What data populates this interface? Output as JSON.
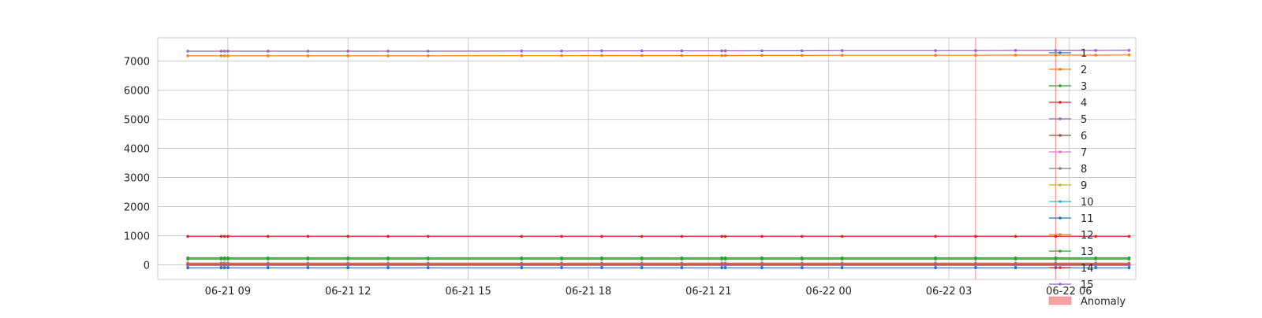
{
  "chart_data": {
    "type": "line",
    "title": "",
    "xlabel": "",
    "ylabel": "",
    "x_type": "datetime",
    "x_range": [
      "2024-06-21 07:15",
      "2024-06-22 07:40"
    ],
    "ylim": [
      -500,
      7800
    ],
    "grid": true,
    "legend_position": "right",
    "x_ticks": [
      {
        "value": "2024-06-21 09:00",
        "label": "06-21 09"
      },
      {
        "value": "2024-06-21 12:00",
        "label": "06-21 12"
      },
      {
        "value": "2024-06-21 15:00",
        "label": "06-21 15"
      },
      {
        "value": "2024-06-21 18:00",
        "label": "06-21 18"
      },
      {
        "value": "2024-06-21 21:00",
        "label": "06-21 21"
      },
      {
        "value": "2024-06-22 00:00",
        "label": "06-22 00"
      },
      {
        "value": "2024-06-22 03:00",
        "label": "06-22 03"
      },
      {
        "value": "2024-06-22 06:00",
        "label": "06-22 06"
      }
    ],
    "y_ticks": [
      0,
      1000,
      2000,
      3000,
      4000,
      5000,
      6000,
      7000
    ],
    "timestamps": [
      "2024-06-21 08:00",
      "2024-06-21 08:50",
      "2024-06-21 08:55",
      "2024-06-21 09:00",
      "2024-06-21 10:00",
      "2024-06-21 11:00",
      "2024-06-21 12:00",
      "2024-06-21 13:00",
      "2024-06-21 14:00",
      "2024-06-21 16:20",
      "2024-06-21 17:20",
      "2024-06-21 18:20",
      "2024-06-21 19:20",
      "2024-06-21 20:20",
      "2024-06-21 21:20",
      "2024-06-21 21:25",
      "2024-06-21 22:20",
      "2024-06-21 23:20",
      "2024-06-22 00:20",
      "2024-06-22 02:40",
      "2024-06-22 03:40",
      "2024-06-22 04:40",
      "2024-06-22 05:40",
      "2024-06-22 06:40",
      "2024-06-22 07:30"
    ],
    "series": [
      {
        "name": "1",
        "color": "#1f77b4",
        "values": [
          -100,
          -100,
          -100,
          -100,
          -100,
          -100,
          -100,
          -100,
          -100,
          -100,
          -100,
          -100,
          -100,
          -100,
          -100,
          -100,
          -100,
          -100,
          -100,
          -100,
          -100,
          -100,
          -100,
          -100,
          -100
        ]
      },
      {
        "name": "2",
        "color": "#ff7f0e",
        "values": [
          7180,
          7180,
          7180,
          7180,
          7180,
          7180,
          7180,
          7180,
          7180,
          7185,
          7185,
          7190,
          7190,
          7190,
          7190,
          7190,
          7195,
          7195,
          7200,
          7200,
          7200,
          7205,
          7205,
          7205,
          7210
        ]
      },
      {
        "name": "3",
        "color": "#2ca02c",
        "values": [
          240,
          240,
          240,
          240,
          240,
          240,
          240,
          240,
          240,
          240,
          240,
          240,
          240,
          240,
          240,
          240,
          240,
          240,
          240,
          240,
          240,
          240,
          240,
          240,
          240
        ]
      },
      {
        "name": "4",
        "color": "#d62728",
        "values": [
          980,
          980,
          980,
          980,
          980,
          980,
          980,
          980,
          980,
          980,
          980,
          980,
          980,
          980,
          980,
          980,
          980,
          980,
          980,
          980,
          980,
          980,
          980,
          980,
          980
        ]
      },
      {
        "name": "5",
        "color": "#9467bd",
        "values": [
          7340,
          7340,
          7340,
          7340,
          7340,
          7340,
          7340,
          7340,
          7340,
          7345,
          7345,
          7350,
          7350,
          7350,
          7350,
          7350,
          7355,
          7355,
          7360,
          7360,
          7360,
          7365,
          7365,
          7365,
          7370
        ]
      },
      {
        "name": "6",
        "color": "#8c564b",
        "values": [
          60,
          60,
          60,
          60,
          60,
          60,
          60,
          60,
          60,
          60,
          60,
          60,
          60,
          60,
          60,
          60,
          60,
          60,
          60,
          60,
          60,
          60,
          60,
          60,
          60
        ]
      },
      {
        "name": "7",
        "color": "#e377c2",
        "values": [
          40,
          40,
          40,
          40,
          40,
          40,
          40,
          40,
          40,
          40,
          40,
          40,
          40,
          40,
          40,
          40,
          40,
          40,
          40,
          40,
          40,
          40,
          40,
          40,
          40
        ]
      },
      {
        "name": "8",
        "color": "#7f7f7f",
        "values": [
          20,
          20,
          20,
          20,
          20,
          20,
          20,
          20,
          20,
          20,
          20,
          20,
          20,
          20,
          20,
          20,
          20,
          20,
          20,
          20,
          20,
          20,
          20,
          20,
          20
        ]
      },
      {
        "name": "9",
        "color": "#bcbd22",
        "values": [
          10,
          10,
          10,
          10,
          10,
          10,
          10,
          10,
          10,
          10,
          10,
          10,
          10,
          10,
          10,
          10,
          10,
          10,
          10,
          10,
          10,
          10,
          10,
          10,
          10
        ]
      },
      {
        "name": "10",
        "color": "#17becf",
        "values": [
          0,
          0,
          0,
          0,
          0,
          0,
          0,
          0,
          0,
          0,
          0,
          0,
          0,
          0,
          0,
          0,
          0,
          0,
          0,
          0,
          0,
          0,
          0,
          0,
          0
        ]
      },
      {
        "name": "11",
        "color": "#1f77b4",
        "values": [
          -10,
          -10,
          -10,
          -10,
          -10,
          -10,
          -10,
          -10,
          -10,
          -10,
          -10,
          -10,
          -10,
          -10,
          -10,
          -10,
          -10,
          -10,
          -10,
          -10,
          -10,
          -10,
          -10,
          -10,
          -10
        ]
      },
      {
        "name": "12",
        "color": "#ff7f0e",
        "values": [
          30,
          30,
          30,
          30,
          30,
          30,
          30,
          30,
          30,
          30,
          30,
          30,
          30,
          30,
          30,
          30,
          30,
          30,
          30,
          30,
          30,
          30,
          30,
          30,
          30
        ]
      },
      {
        "name": "13",
        "color": "#2ca02c",
        "values": [
          200,
          200,
          200,
          200,
          200,
          200,
          200,
          200,
          200,
          200,
          200,
          200,
          200,
          200,
          200,
          200,
          200,
          200,
          200,
          200,
          200,
          200,
          200,
          200,
          200
        ]
      },
      {
        "name": "14",
        "color": "#d62728",
        "values": [
          5,
          5,
          5,
          5,
          5,
          5,
          5,
          5,
          5,
          5,
          5,
          5,
          5,
          5,
          5,
          5,
          5,
          5,
          5,
          5,
          5,
          5,
          5,
          5,
          5
        ]
      },
      {
        "name": "15",
        "color": "#9467bd",
        "values": [
          -20,
          -20,
          -20,
          -20,
          -20,
          -20,
          -20,
          -20,
          -20,
          -20,
          -20,
          -20,
          -20,
          -20,
          -20,
          -20,
          -20,
          -20,
          -20,
          -20,
          -20,
          -20,
          -20,
          -20,
          -20
        ]
      }
    ],
    "anomalies": [
      {
        "time": "2024-06-22 03:40",
        "color": "#ff0000"
      },
      {
        "time": "2024-06-22 05:40",
        "color": "#ff0000"
      }
    ],
    "legend": {
      "anomaly_label": "Anomaly",
      "anomaly_color": "#f4a3a3"
    }
  }
}
